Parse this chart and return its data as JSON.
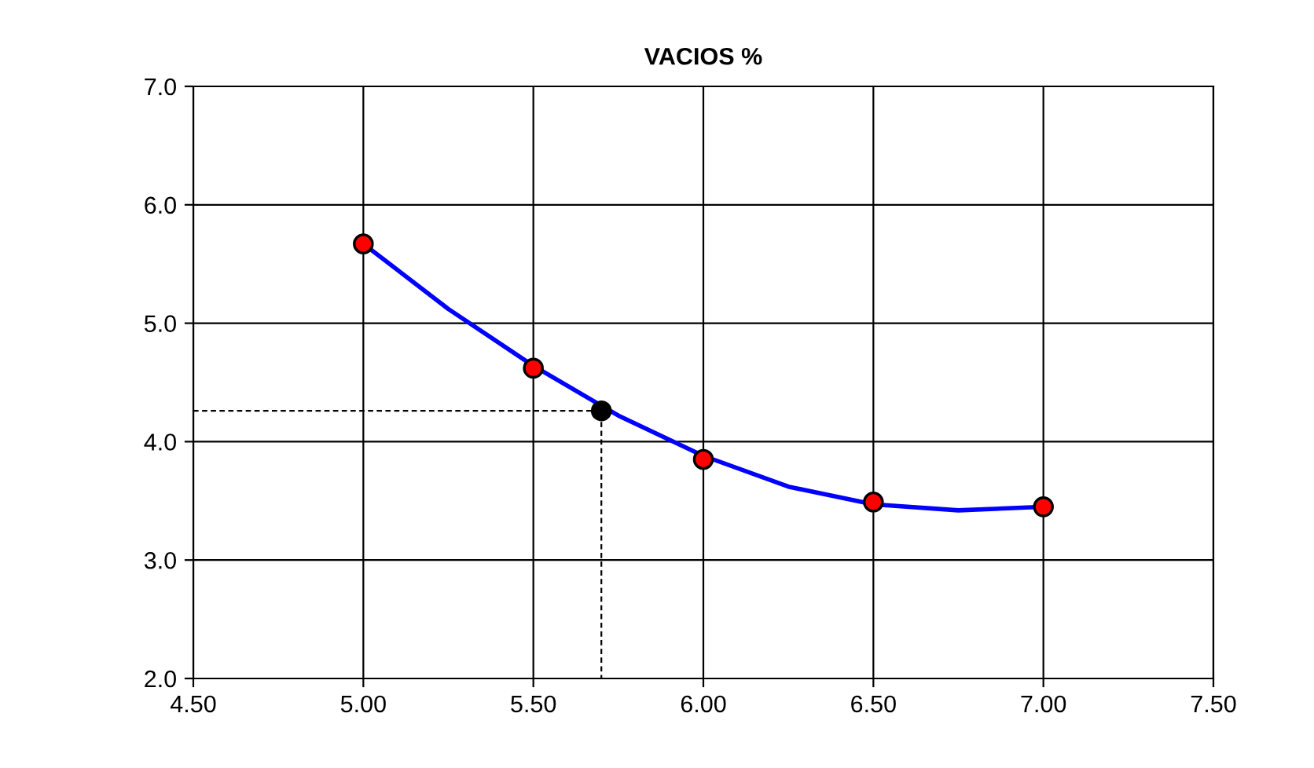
{
  "chart_data": {
    "type": "scatter",
    "title": "VACIOS %",
    "series": [
      {
        "type": "line",
        "color": "#0000ff",
        "x": [
          5.0,
          5.25,
          5.5,
          5.75,
          6.0,
          6.25,
          6.5,
          6.75,
          7.0
        ],
        "values": [
          5.67,
          5.12,
          4.64,
          4.22,
          3.88,
          3.62,
          3.47,
          3.42,
          3.45
        ],
        "marker": "none",
        "line_style": "solid"
      },
      {
        "type": "line",
        "color": "#000000",
        "x": [
          4.5,
          5.7,
          5.7
        ],
        "values": [
          4.26,
          4.26,
          2.0
        ],
        "marker": "none",
        "line_style": "dashed"
      },
      {
        "color": "#ff0000",
        "x": [
          5.0,
          5.5,
          6.0,
          6.5,
          7.0
        ],
        "values": [
          5.67,
          4.62,
          3.85,
          3.49,
          3.45
        ],
        "marker": "circle"
      },
      {
        "color": "#000000",
        "x": [
          5.7
        ],
        "values": [
          4.26
        ],
        "marker": "circle"
      }
    ],
    "xlim": [
      4.5,
      7.5
    ],
    "xticks": [
      {
        "value": 4.5,
        "label": "4.50"
      },
      {
        "value": 5.0,
        "label": "5.00"
      },
      {
        "value": 5.5,
        "label": "5.50"
      },
      {
        "value": 6.0,
        "label": "6.00"
      },
      {
        "value": 6.5,
        "label": "6.50"
      },
      {
        "value": 7.0,
        "label": "7.00"
      },
      {
        "value": 7.5,
        "label": "7.50"
      }
    ],
    "ylim": [
      2.0,
      7.0
    ],
    "yticks": [
      {
        "value": 2.0,
        "label": "2.0"
      },
      {
        "value": 3.0,
        "label": "3.0"
      },
      {
        "value": 4.0,
        "label": "4.0"
      },
      {
        "value": 5.0,
        "label": "5.0"
      },
      {
        "value": 6.0,
        "label": "6.0"
      },
      {
        "value": 7.0,
        "label": "7.0"
      }
    ],
    "grid": true,
    "legend": false
  }
}
